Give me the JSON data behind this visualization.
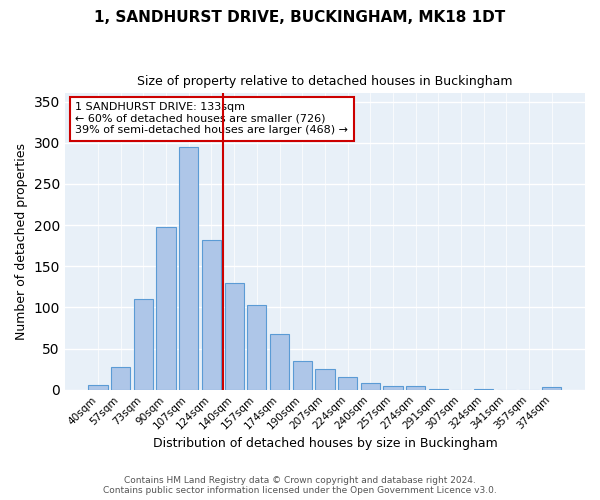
{
  "title": "1, SANDHURST DRIVE, BUCKINGHAM, MK18 1DT",
  "subtitle": "Size of property relative to detached houses in Buckingham",
  "xlabel": "Distribution of detached houses by size in Buckingham",
  "ylabel": "Number of detached properties",
  "footnote1": "Contains HM Land Registry data © Crown copyright and database right 2024.",
  "footnote2": "Contains public sector information licensed under the Open Government Licence v3.0.",
  "categories": [
    "40sqm",
    "57sqm",
    "73sqm",
    "90sqm",
    "107sqm",
    "124sqm",
    "140sqm",
    "157sqm",
    "174sqm",
    "190sqm",
    "207sqm",
    "224sqm",
    "240sqm",
    "257sqm",
    "274sqm",
    "291sqm",
    "307sqm",
    "324sqm",
    "341sqm",
    "357sqm",
    "374sqm"
  ],
  "values": [
    6,
    28,
    110,
    198,
    295,
    182,
    130,
    103,
    68,
    35,
    25,
    16,
    8,
    4,
    4,
    1,
    0,
    1,
    0,
    0,
    3
  ],
  "bar_color": "#aec6e8",
  "bar_edge_color": "#5b9bd5",
  "vline_x": 5.5,
  "vline_color": "#cc0000",
  "annotation_title": "1 SANDHURST DRIVE: 133sqm",
  "annotation_line1": "← 60% of detached houses are smaller (726)",
  "annotation_line2": "39% of semi-detached houses are larger (468) →",
  "annotation_box_color": "#ffffff",
  "annotation_box_edge": "#cc0000",
  "bg_color": "#e8f0f8",
  "ylim": [
    0,
    360
  ],
  "yticks": [
    0,
    50,
    100,
    150,
    200,
    250,
    300,
    350
  ]
}
